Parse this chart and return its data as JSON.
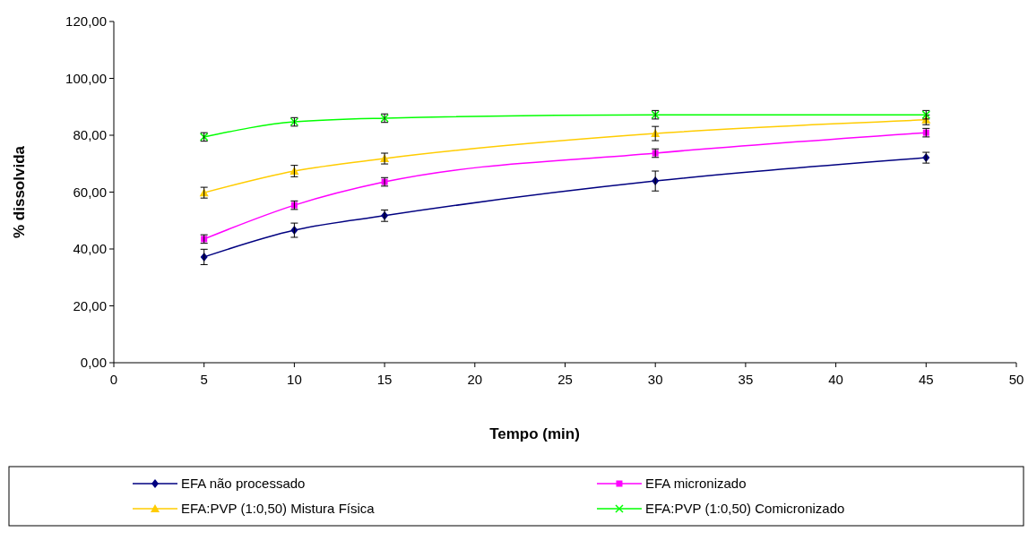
{
  "chart_data": {
    "type": "line",
    "xlabel": "Tempo (min)",
    "ylabel": "% dissolvida",
    "x": [
      5,
      10,
      15,
      30,
      45
    ],
    "xlim": [
      0,
      50
    ],
    "xticks": [
      0,
      5,
      10,
      15,
      20,
      25,
      30,
      35,
      40,
      45,
      50
    ],
    "ylim": [
      0,
      120
    ],
    "yticks": [
      {
        "value": 0,
        "label": "0,00"
      },
      {
        "value": 20,
        "label": "20,00"
      },
      {
        "value": 40,
        "label": "40,00"
      },
      {
        "value": 60,
        "label": "60,00"
      },
      {
        "value": 80,
        "label": "80,00"
      },
      {
        "value": 100,
        "label": "100,00"
      },
      {
        "value": 120,
        "label": "120,00"
      }
    ],
    "grid": false,
    "legend": "bottom",
    "series": [
      {
        "name": "EFA não processado",
        "color": "#000080",
        "marker": "diamond",
        "values": [
          37.2,
          46.6,
          51.7,
          63.9,
          72.1
        ],
        "errors": [
          2.7,
          2.5,
          2,
          3.5,
          1.9
        ]
      },
      {
        "name": "EFA micronizado",
        "color": "#ff00ff",
        "marker": "square",
        "values": [
          43.5,
          55.4,
          63.6,
          73.7,
          80.9
        ],
        "errors": [
          1.5,
          1.5,
          1.5,
          1.5,
          1.5
        ]
      },
      {
        "name": "EFA:PVP (1:0,50) Mistura Física",
        "color": "#ffcc00",
        "marker": "triangle",
        "values": [
          59.8,
          67.4,
          71.8,
          80.6,
          85.4
        ],
        "errors": [
          1.9,
          2,
          1.9,
          2.5,
          1.7
        ]
      },
      {
        "name": "EFA:PVP (1:0,50) Comicronizado",
        "color": "#00ff00",
        "marker": "cross",
        "values": [
          79.4,
          84.7,
          86.0,
          87.2,
          87.2
        ],
        "errors": [
          1.5,
          1.5,
          1.5,
          1.5,
          1.5
        ]
      }
    ]
  }
}
